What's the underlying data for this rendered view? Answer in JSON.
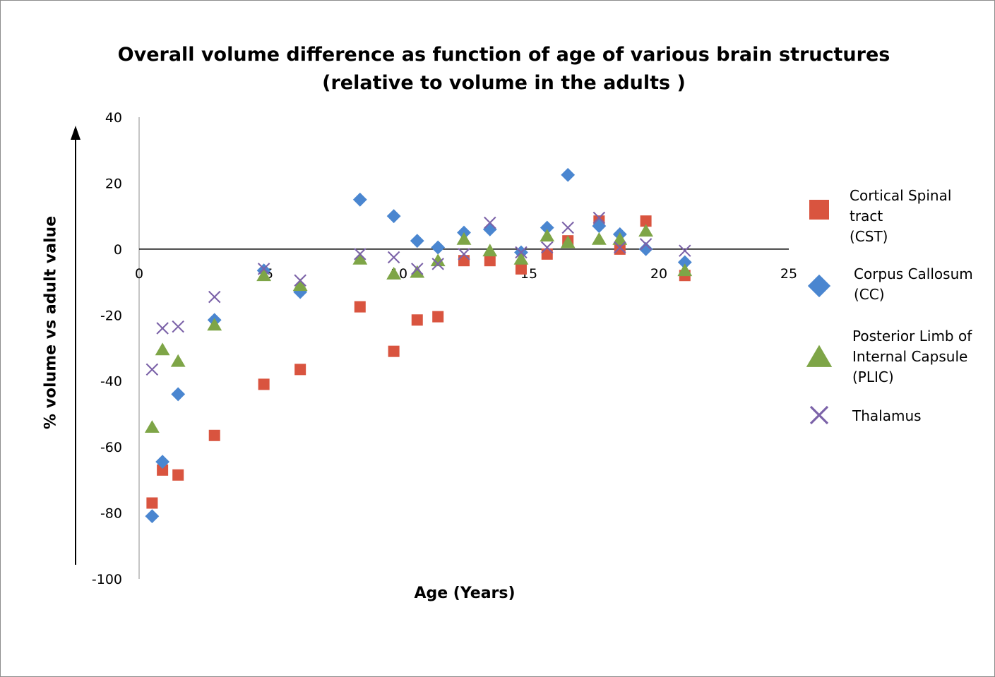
{
  "chart_data": {
    "type": "scatter",
    "title_line1": "Overall volume difference as function of age of various brain structures",
    "title_line2": "(relative to volume in the adults )",
    "xlabel": "Age (Years)",
    "ylabel": "% volume vs adult value",
    "xlim": [
      0,
      25
    ],
    "ylim": [
      -100,
      40
    ],
    "xticks": [
      0,
      5,
      10,
      15,
      20,
      25
    ],
    "yticks": [
      40,
      20,
      0,
      -20,
      -40,
      -60,
      -80,
      -100
    ],
    "xtick_labels": [
      "0",
      "5",
      "10",
      "15",
      "20",
      "25"
    ],
    "ytick_labels": [
      "40",
      "20",
      "0",
      "-20",
      "-40",
      "-60",
      "-80",
      "-100"
    ],
    "legend_position": "right",
    "series": [
      {
        "name": "Cortical Spinal\ntract\n(CST)",
        "marker": "square",
        "color": "#d9543f",
        "x": [
          0.5,
          0.9,
          1.5,
          2.9,
          4.8,
          6.2,
          8.5,
          9.8,
          10.7,
          11.5,
          12.5,
          13.5,
          14.7,
          15.7,
          16.5,
          17.7,
          18.5,
          19.5,
          21
        ],
        "y": [
          -77,
          -67,
          -68.5,
          -56.5,
          -41,
          -36.5,
          -17.5,
          -31,
          -21.5,
          -20.5,
          -3.5,
          -3.5,
          -6,
          -1.5,
          2.5,
          8.5,
          0,
          8.5,
          -8
        ]
      },
      {
        "name": "Corpus Callosum\n(CC)",
        "marker": "diamond",
        "color": "#4a86d0",
        "x": [
          0.5,
          0.9,
          1.5,
          2.9,
          4.8,
          6.2,
          8.5,
          9.8,
          10.7,
          11.5,
          12.5,
          13.5,
          14.7,
          15.7,
          16.5,
          17.7,
          18.5,
          19.5,
          21
        ],
        "y": [
          -81,
          -64.5,
          -44,
          -21.5,
          -6.5,
          -13,
          15,
          10,
          2.5,
          0.5,
          5,
          6,
          -1,
          6.5,
          22.5,
          7,
          4.5,
          0,
          -4
        ]
      },
      {
        "name": "Posterior Limb of\nInternal Capsule\n(PLIC)",
        "marker": "triangle",
        "color": "#7ea547",
        "x": [
          0.5,
          0.9,
          1.5,
          2.9,
          4.8,
          6.2,
          8.5,
          9.8,
          10.7,
          11.5,
          12.5,
          13.5,
          14.7,
          15.7,
          16.5,
          17.7,
          18.5,
          19.5,
          21
        ],
        "y": [
          -54,
          -30.5,
          -34,
          -23,
          -8,
          -11,
          -3,
          -7.5,
          -7,
          -3.5,
          3,
          -0.5,
          -3,
          4,
          2,
          3,
          3,
          5.5,
          -6.5
        ]
      },
      {
        "name": "Thalamus",
        "marker": "x",
        "color": "#7b62a8",
        "x": [
          0.5,
          0.9,
          1.5,
          2.9,
          4.8,
          6.2,
          8.5,
          9.8,
          10.7,
          11.5,
          12.5,
          13.5,
          14.7,
          15.7,
          16.5,
          17.7,
          18.5,
          19.5,
          21
        ],
        "y": [
          -36.5,
          -24,
          -23.5,
          -14.5,
          -6,
          -9.5,
          -1.5,
          -2.5,
          -6,
          -4.5,
          -1.5,
          8,
          -1,
          0.5,
          6.5,
          9.5,
          0.5,
          1.5,
          -0.5
        ]
      }
    ]
  }
}
